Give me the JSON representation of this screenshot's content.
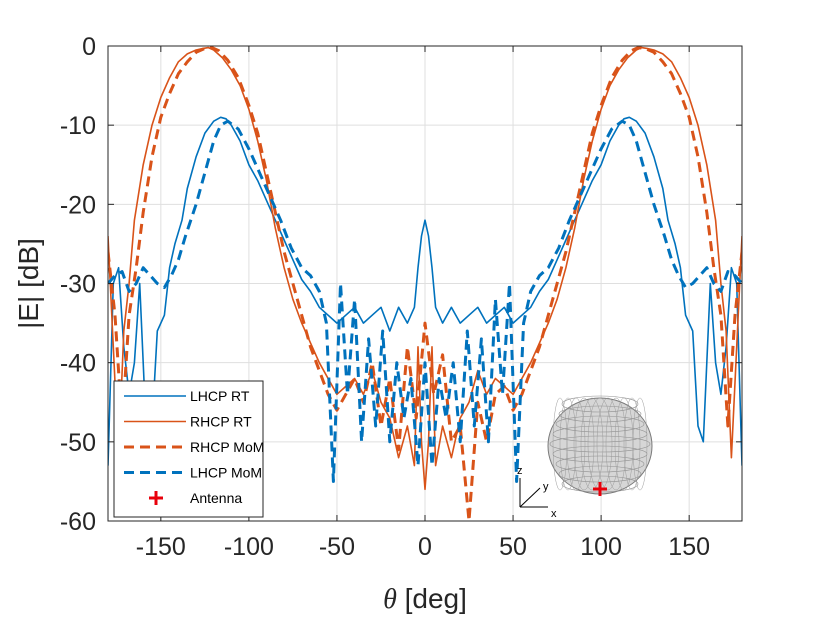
{
  "chart_data": {
    "type": "line",
    "title": "",
    "xlabel_symbol": "θ",
    "xlabel_text": " [deg]",
    "ylabel": "|E| [dB]",
    "xlim": [
      -180,
      180
    ],
    "ylim": [
      -60,
      0
    ],
    "xticks": [
      -150,
      -100,
      -50,
      0,
      50,
      100,
      150
    ],
    "yticks": [
      0,
      -10,
      -20,
      -30,
      -40,
      -50,
      -60
    ],
    "grid": true,
    "legend_location": "bottom-left",
    "series": [
      {
        "name": "LHCP RT",
        "color": "#0072BD",
        "style": "solid",
        "x": [
          -180,
          -177,
          -174,
          -171,
          -168,
          -165,
          -162,
          -158,
          -155,
          -152,
          -148,
          -145,
          -142,
          -138,
          -135,
          -130,
          -125,
          -120,
          -116,
          -113,
          -110,
          -105,
          -100,
          -95,
          -90,
          -85,
          -80,
          -75,
          -70,
          -65,
          -60,
          -55,
          -50,
          -45,
          -40,
          -35,
          -30,
          -25,
          -20,
          -15,
          -10,
          -6,
          -4,
          -2,
          0,
          2,
          4,
          6,
          10,
          15,
          20,
          25,
          30,
          35,
          40,
          45,
          50,
          55,
          60,
          65,
          70,
          75,
          80,
          85,
          90,
          95,
          100,
          105,
          110,
          113,
          116,
          120,
          125,
          130,
          135,
          138,
          142,
          145,
          148,
          152,
          155,
          158,
          162,
          165,
          168,
          171,
          174,
          177,
          180
        ],
        "y": [
          -53,
          -30,
          -28,
          -38,
          -44,
          -40,
          -30,
          -50,
          -48,
          -36,
          -34,
          -28,
          -25,
          -22,
          -18,
          -14,
          -11,
          -9.5,
          -9,
          -9.2,
          -10,
          -12,
          -15,
          -17,
          -19.5,
          -22,
          -24.5,
          -27,
          -29.5,
          -31,
          -33,
          -34,
          -35,
          -34,
          -33,
          -35,
          -34,
          -33,
          -36,
          -33,
          -35,
          -33,
          -28,
          -24,
          -22,
          -24,
          -28,
          -33,
          -35,
          -33,
          -35,
          -34,
          -33,
          -35,
          -34,
          -33,
          -35,
          -34,
          -33,
          -31,
          -29.5,
          -27,
          -24.5,
          -22,
          -19.5,
          -17,
          -15,
          -12,
          -10,
          -9.2,
          -9,
          -9.5,
          -11,
          -14,
          -18,
          -22,
          -25,
          -28,
          -34,
          -36,
          -48,
          -50,
          -30,
          -40,
          -44,
          -38,
          -28,
          -30,
          -53
        ]
      },
      {
        "name": "RHCP RT",
        "color": "#D95319",
        "style": "solid",
        "x": [
          -180,
          -177,
          -174,
          -171,
          -168,
          -165,
          -160,
          -155,
          -150,
          -145,
          -140,
          -135,
          -130,
          -126,
          -123,
          -120,
          -115,
          -110,
          -105,
          -100,
          -95,
          -90,
          -85,
          -80,
          -75,
          -70,
          -65,
          -60,
          -55,
          -50,
          -45,
          -40,
          -35,
          -30,
          -25,
          -20,
          -15,
          -10,
          -6,
          -4,
          -2,
          0,
          2,
          4,
          6,
          10,
          15,
          20,
          25,
          30,
          35,
          40,
          45,
          50,
          55,
          60,
          65,
          70,
          75,
          80,
          85,
          90,
          95,
          100,
          105,
          110,
          115,
          120,
          123,
          126,
          130,
          135,
          140,
          145,
          150,
          155,
          160,
          165,
          168,
          171,
          174,
          177,
          180
        ],
        "y": [
          -24,
          -38,
          -52,
          -36,
          -30,
          -22,
          -15,
          -10,
          -6.5,
          -4,
          -2,
          -1,
          -0.5,
          -0.3,
          -0.2,
          -0.5,
          -1.5,
          -3,
          -5,
          -8,
          -12,
          -17,
          -23,
          -28,
          -32,
          -35,
          -37.5,
          -40,
          -42,
          -44,
          -43,
          -42,
          -44,
          -41,
          -45,
          -47,
          -52,
          -48,
          -53,
          -38,
          -50,
          -56,
          -50,
          -38,
          -53,
          -48,
          -52,
          -47,
          -45,
          -41,
          -44,
          -42,
          -43,
          -44,
          -42,
          -40,
          -37.5,
          -35,
          -32,
          -28,
          -23,
          -17,
          -12,
          -8,
          -5,
          -3,
          -1.5,
          -0.5,
          -0.2,
          -0.3,
          -0.5,
          -1,
          -2,
          -4,
          -6.5,
          -10,
          -15,
          -22,
          -30,
          -36,
          -52,
          -38,
          -24
        ]
      },
      {
        "name": "RHCP MoM",
        "color": "#D95319",
        "style": "dashed",
        "x": [
          -180,
          -176,
          -172,
          -168,
          -164,
          -160,
          -155,
          -150,
          -145,
          -140,
          -135,
          -130,
          -125,
          -121,
          -117,
          -112,
          -106,
          -100,
          -95,
          -90,
          -85,
          -80,
          -75,
          -70,
          -65,
          -60,
          -55,
          -50,
          -45,
          -40,
          -35,
          -30,
          -25,
          -20,
          -15,
          -10,
          -5,
          0,
          5,
          10,
          15,
          20,
          25,
          30,
          35,
          40,
          45,
          50,
          55,
          60,
          65,
          70,
          75,
          80,
          85,
          90,
          95,
          100,
          106,
          112,
          117,
          121,
          125,
          130,
          135,
          140,
          145,
          150,
          155,
          160,
          164,
          168,
          172,
          176,
          180
        ],
        "y": [
          -26,
          -34,
          -48,
          -34,
          -28,
          -21,
          -14,
          -9,
          -6,
          -3.5,
          -2,
          -0.8,
          -0.3,
          -0.2,
          -0.6,
          -1.8,
          -4,
          -7.5,
          -11,
          -16,
          -21,
          -26,
          -30,
          -34,
          -38,
          -41,
          -44,
          -46,
          -44,
          -42,
          -45,
          -40,
          -48,
          -42,
          -51,
          -38,
          -47,
          -35,
          -44,
          -39,
          -50,
          -48,
          -60,
          -45,
          -50,
          -44,
          -43,
          -46,
          -44,
          -41,
          -38,
          -34,
          -30,
          -26,
          -21,
          -16,
          -11,
          -7.5,
          -4,
          -1.8,
          -0.6,
          -0.2,
          -0.3,
          -0.8,
          -2,
          -3.5,
          -6,
          -9,
          -14,
          -21,
          -28,
          -34,
          -48,
          -34,
          -26
        ]
      },
      {
        "name": "LHCP MoM",
        "color": "#0072BD",
        "style": "dashed",
        "x": [
          -180,
          -176,
          -172,
          -168,
          -164,
          -160,
          -156,
          -152,
          -148,
          -144,
          -140,
          -136,
          -130,
          -125,
          -120,
          -116,
          -112,
          -106,
          -100,
          -94,
          -88,
          -82,
          -76,
          -70,
          -65,
          -60,
          -56,
          -52,
          -48,
          -44,
          -40,
          -36,
          -32,
          -28,
          -24,
          -20,
          -16,
          -12,
          -8,
          -4,
          0,
          4,
          8,
          12,
          16,
          20,
          24,
          28,
          32,
          36,
          40,
          44,
          48,
          52,
          56,
          60,
          65,
          70,
          76,
          82,
          88,
          94,
          100,
          106,
          112,
          116,
          120,
          125,
          130,
          136,
          140,
          144,
          148,
          152,
          156,
          160,
          164,
          168,
          172,
          176,
          180
        ],
        "y": [
          -30,
          -29,
          -28.5,
          -31,
          -30,
          -28,
          -29,
          -30,
          -30.5,
          -29,
          -27,
          -24,
          -20,
          -16,
          -12,
          -10,
          -9.5,
          -10.5,
          -13,
          -16,
          -19,
          -22,
          -25.5,
          -28,
          -29,
          -31,
          -35,
          -55,
          -30,
          -44,
          -32,
          -50,
          -37,
          -48,
          -36,
          -50,
          -40,
          -47,
          -42,
          -53,
          -40,
          -53,
          -42,
          -47,
          -40,
          -50,
          -36,
          -48,
          -37,
          -50,
          -32,
          -44,
          -30,
          -55,
          -35,
          -31,
          -29,
          -28,
          -25.5,
          -22,
          -19,
          -16,
          -13,
          -10.5,
          -9.5,
          -10,
          -12,
          -16,
          -20,
          -24,
          -27,
          -29,
          -30.5,
          -30,
          -29,
          -28,
          -30,
          -31,
          -28.5,
          -29,
          -30
        ]
      }
    ],
    "legend": [
      {
        "label": "LHCP RT",
        "color": "#0072BD",
        "style": "solid"
      },
      {
        "label": "RHCP RT",
        "color": "#D95319",
        "style": "solid"
      },
      {
        "label": "RHCP MoM",
        "color": "#D95319",
        "style": "dashed"
      },
      {
        "label": "LHCP MoM",
        "color": "#0072BD",
        "style": "dashed"
      },
      {
        "label": "Antenna",
        "color": "#E8000B",
        "style": "marker-plus"
      }
    ],
    "inset": {
      "description": "3D wireframe of the platform body",
      "axis_letters": [
        "z",
        "y",
        "x"
      ],
      "antenna_marker_color": "#E8000B"
    }
  }
}
